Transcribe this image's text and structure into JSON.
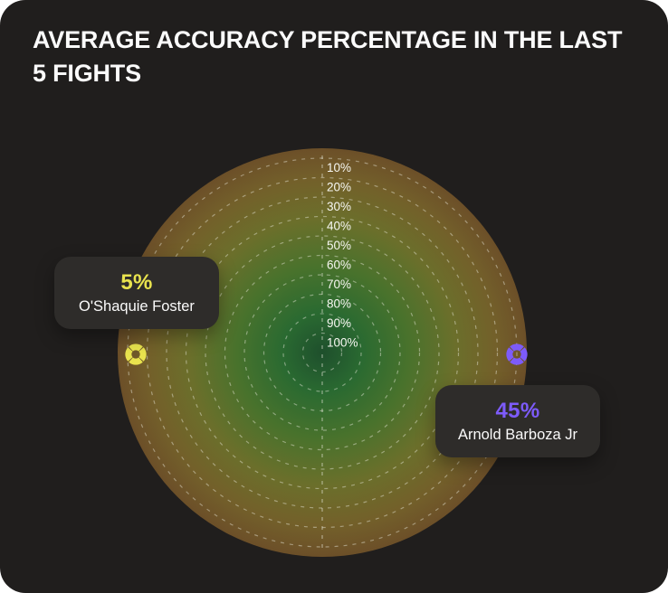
{
  "title": "AVERAGE ACCURACY PERCENTAGE IN THE LAST 5 FIGHTS",
  "card": {
    "background": "#201e1d"
  },
  "chart_data": {
    "type": "radial-target",
    "title": "Average accuracy percentage in the last 5 fights",
    "rings": [
      "10%",
      "20%",
      "30%",
      "40%",
      "50%",
      "60%",
      "70%",
      "80%",
      "90%",
      "100%"
    ],
    "ring_order": "10% outermost ring, 100% at center",
    "grid": {
      "style": "dashed-concentric-circles",
      "color": "rgba(235,235,222,0.45)"
    },
    "series": [
      {
        "name": "O'Shaquie Foster",
        "label": "5%",
        "value": 5,
        "color": "#e9e34e",
        "side": "left"
      },
      {
        "name": "Arnold Barboza Jr",
        "label": "45%",
        "value": 45,
        "color": "#7d5bfa",
        "side": "right"
      }
    ],
    "legend_position": "tooltips-on-chart"
  }
}
